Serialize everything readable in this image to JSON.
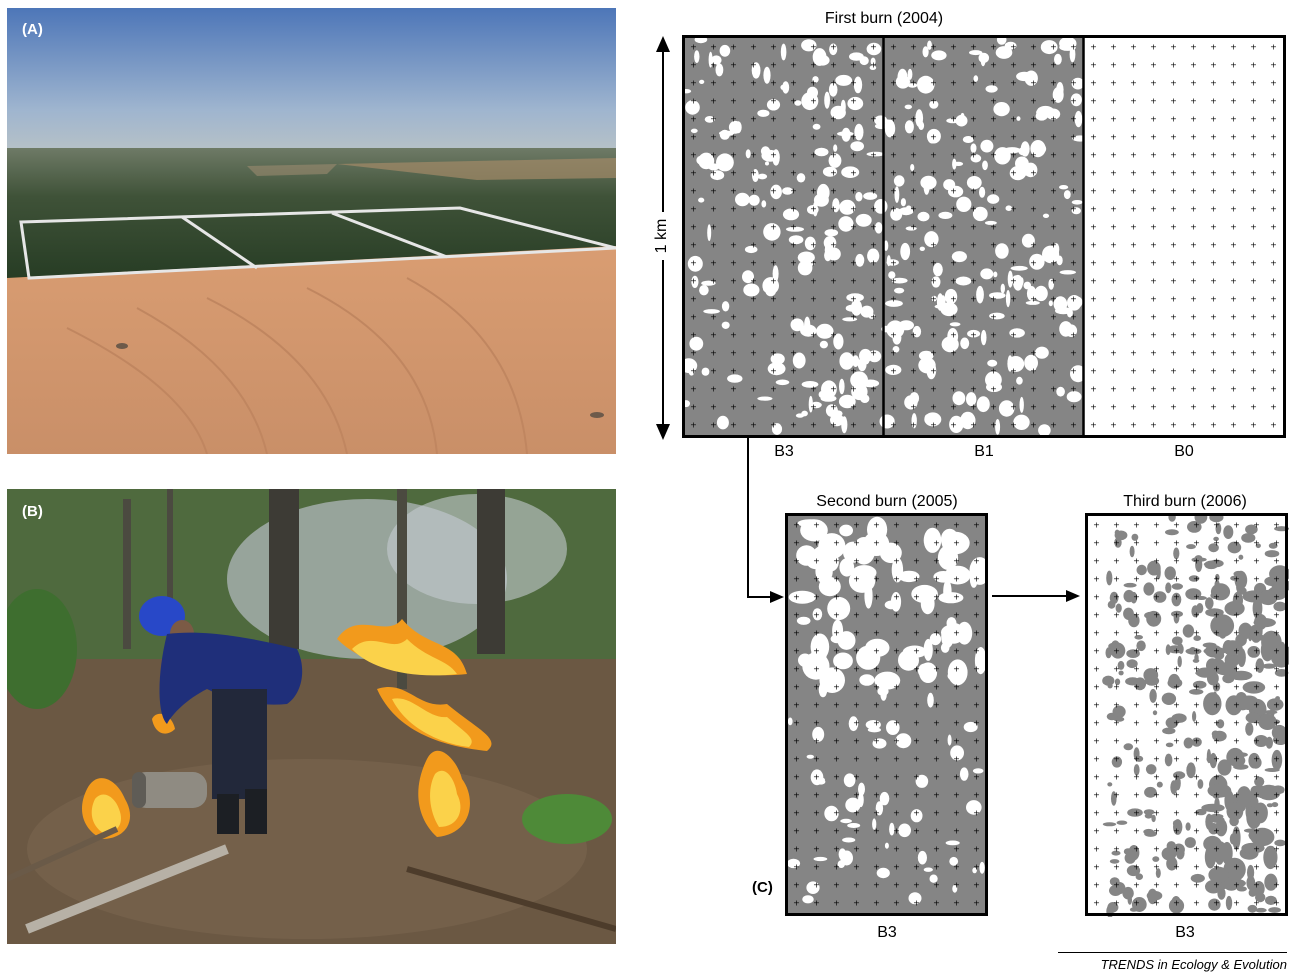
{
  "panels": {
    "a_label": "(A)",
    "b_label": "(B)",
    "c_label": "(C)"
  },
  "burns": {
    "first_title": "First burn (2004)",
    "second_title": "Second burn (2005)",
    "third_title": "Third burn (2006)"
  },
  "plots": {
    "b3": "B3",
    "b1": "B1",
    "b0": "B0"
  },
  "scale": {
    "label": "1 km"
  },
  "credit": "TRENDS in Ecology & Evolution",
  "colors": {
    "burned": "#858585",
    "unburned": "#ffffff",
    "frame": "#000000"
  }
}
